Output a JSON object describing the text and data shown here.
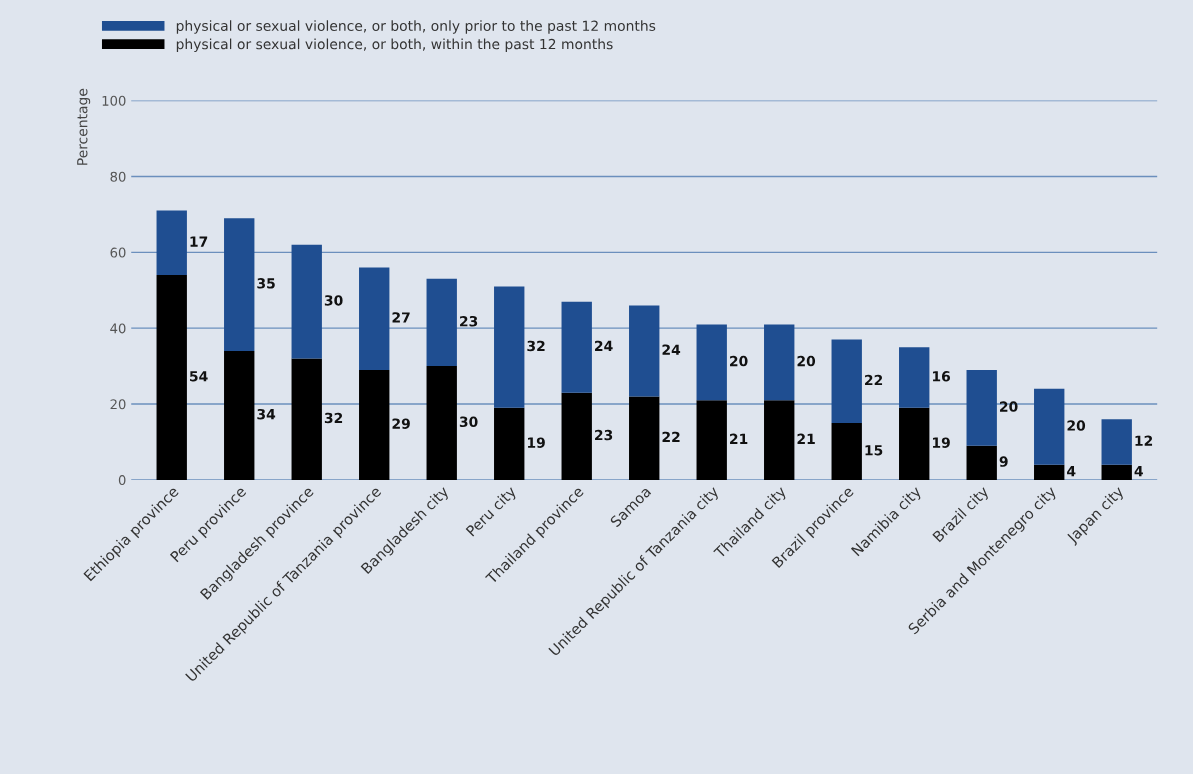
{
  "chart_data": {
    "type": "bar",
    "stacked": true,
    "ylabel": "Percentage",
    "categories": [
      "Ethiopia province",
      "Peru province",
      "Bangladesh province",
      "United Republic of Tanzania province",
      "Bangladesh city",
      "Peru city",
      "Thailand province",
      "Samoa",
      "United Republic of Tanzania city",
      "Thailand city",
      "Brazil province",
      "Namibia city",
      "Brazil city",
      "Serbia and Montenegro city",
      "Japan city"
    ],
    "series": [
      {
        "name": "physical or sexual violence, or both, within the past 12 months",
        "color": "#000000",
        "values": [
          54,
          34,
          32,
          29,
          30,
          19,
          23,
          22,
          21,
          21,
          15,
          19,
          9,
          4,
          4
        ]
      },
      {
        "name": "physical or sexual violence, or both, only prior to the past 12 months",
        "color": "#1f4e91",
        "values": [
          17,
          35,
          30,
          27,
          23,
          32,
          24,
          24,
          20,
          20,
          22,
          16,
          20,
          20,
          12
        ]
      }
    ],
    "ylim": [
      0,
      100
    ],
    "yticks": [
      0,
      20,
      40,
      60,
      80,
      100
    ],
    "grid": "y",
    "legend": "top left",
    "data_labels": true
  }
}
